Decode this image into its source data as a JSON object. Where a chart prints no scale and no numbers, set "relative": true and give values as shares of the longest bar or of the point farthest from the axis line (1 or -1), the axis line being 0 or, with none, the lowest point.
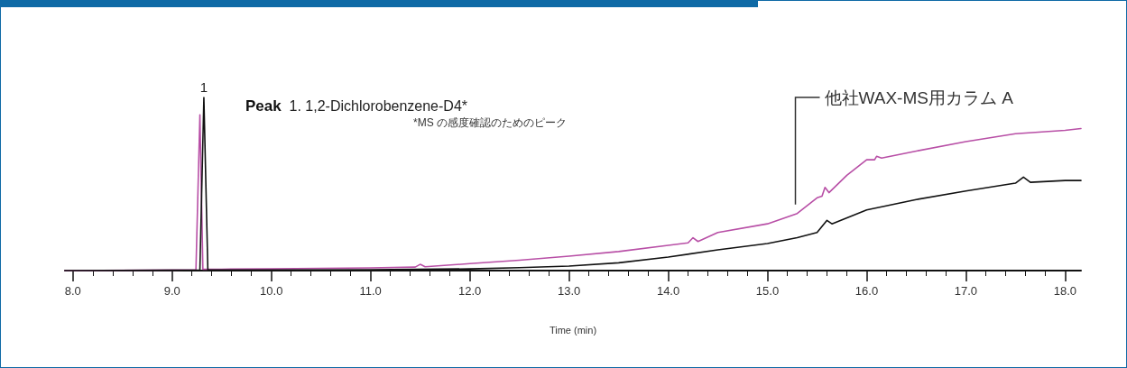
{
  "chart_data": {
    "type": "line",
    "relative": true,
    "xlabel": "Time (min)",
    "annotations": [
      {
        "text": "1",
        "x": 9.32,
        "y": 1
      },
      "Peak  1. 1,2-Dichlorobenzene-D4*",
      "*MS の感度確認のためのピーク"
    ],
    "xlim": [
      7.92,
      18.16
    ],
    "xticks": [
      {
        "value": 8,
        "label": "8.0"
      },
      {
        "value": 8.2,
        "label": null
      },
      {
        "value": 8.4,
        "label": null
      },
      {
        "value": 8.6,
        "label": null
      },
      {
        "value": 8.8,
        "label": null
      },
      {
        "value": 9,
        "label": "9.0"
      },
      {
        "value": 9.2,
        "label": null
      },
      {
        "value": 9.4,
        "label": null
      },
      {
        "value": 9.6,
        "label": null
      },
      {
        "value": 9.8,
        "label": null
      },
      {
        "value": 10,
        "label": "10.0"
      },
      {
        "value": 10.2,
        "label": null
      },
      {
        "value": 10.4,
        "label": null
      },
      {
        "value": 10.6,
        "label": null
      },
      {
        "value": 10.8,
        "label": null
      },
      {
        "value": 11,
        "label": "11.0"
      },
      {
        "value": 11.2,
        "label": null
      },
      {
        "value": 11.4,
        "label": null
      },
      {
        "value": 11.6,
        "label": null
      },
      {
        "value": 11.8,
        "label": null
      },
      {
        "value": 12,
        "label": "12.0"
      },
      {
        "value": 12.2,
        "label": null
      },
      {
        "value": 12.4,
        "label": null
      },
      {
        "value": 12.6,
        "label": null
      },
      {
        "value": 12.8,
        "label": null
      },
      {
        "value": 13,
        "label": "13.0"
      },
      {
        "value": 13.2,
        "label": null
      },
      {
        "value": 13.4,
        "label": null
      },
      {
        "value": 13.6,
        "label": null
      },
      {
        "value": 13.8,
        "label": null
      },
      {
        "value": 14,
        "label": "14.0"
      },
      {
        "value": 14.2,
        "label": null
      },
      {
        "value": 14.4,
        "label": null
      },
      {
        "value": 14.6,
        "label": null
      },
      {
        "value": 14.8,
        "label": null
      },
      {
        "value": 15,
        "label": "15.0"
      },
      {
        "value": 15.2,
        "label": null
      },
      {
        "value": 15.4,
        "label": null
      },
      {
        "value": 15.6,
        "label": null
      },
      {
        "value": 15.8,
        "label": null
      },
      {
        "value": 16,
        "label": "16.0"
      },
      {
        "value": 16.2,
        "label": null
      },
      {
        "value": 16.4,
        "label": null
      },
      {
        "value": 16.6,
        "label": null
      },
      {
        "value": 16.8,
        "label": null
      },
      {
        "value": 17,
        "label": "17.0"
      },
      {
        "value": 17.2,
        "label": null
      },
      {
        "value": 17.4,
        "label": null
      },
      {
        "value": 17.6,
        "label": null
      },
      {
        "value": 17.8,
        "label": null
      },
      {
        "value": 18,
        "label": "18.0"
      }
    ],
    "grid": false,
    "legend": false,
    "marker": "none",
    "line_style": "solid",
    "series": [
      {
        "name": "他社WAX-MS用カラム A",
        "color": "#b84fa6",
        "x": [
          7.92,
          9.0,
          9.24,
          9.28,
          9.31,
          9.5,
          10.0,
          10.5,
          11.0,
          11.45,
          11.5,
          11.55,
          12.0,
          12.5,
          13.0,
          13.5,
          14.0,
          14.2,
          14.25,
          14.3,
          14.5,
          15.0,
          15.3,
          15.5,
          15.55,
          15.58,
          15.62,
          15.8,
          16.0,
          16.08,
          16.1,
          16.15,
          16.5,
          17.0,
          17.5,
          18.0,
          18.16
        ],
        "values": [
          0,
          0.003,
          0.005,
          0.9,
          0.008,
          0.008,
          0.01,
          0.013,
          0.016,
          0.02,
          0.036,
          0.022,
          0.04,
          0.06,
          0.083,
          0.11,
          0.146,
          0.16,
          0.19,
          0.168,
          0.22,
          0.27,
          0.33,
          0.42,
          0.43,
          0.48,
          0.45,
          0.55,
          0.64,
          0.64,
          0.66,
          0.65,
          0.69,
          0.745,
          0.79,
          0.81,
          0.82
        ]
      },
      {
        "color": "#111111",
        "x": [
          7.92,
          9.0,
          9.28,
          9.32,
          9.36,
          9.5,
          10.0,
          11.0,
          12.0,
          12.5,
          13.0,
          13.5,
          14.0,
          14.5,
          15.0,
          15.3,
          15.5,
          15.6,
          15.65,
          16.0,
          16.5,
          17.0,
          17.5,
          17.58,
          17.65,
          18.0,
          18.16
        ],
        "values": [
          0,
          0.002,
          0.004,
          1,
          0.004,
          0.003,
          0.004,
          0.005,
          0.01,
          0.017,
          0.026,
          0.045,
          0.078,
          0.12,
          0.156,
          0.19,
          0.22,
          0.29,
          0.27,
          0.35,
          0.41,
          0.46,
          0.505,
          0.54,
          0.51,
          0.52,
          0.52
        ]
      }
    ]
  }
}
